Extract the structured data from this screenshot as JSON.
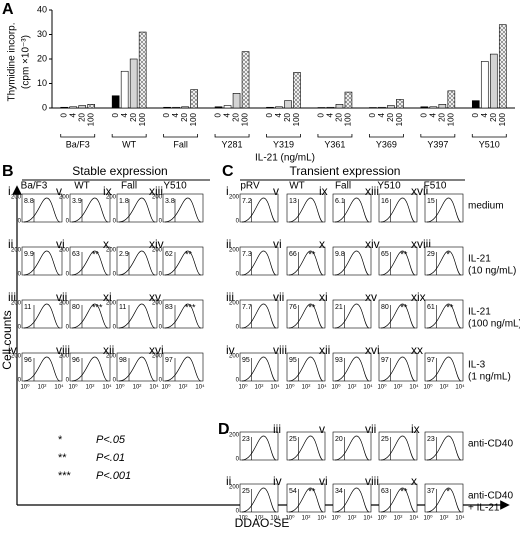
{
  "chart_data": {
    "type": "bar",
    "panel_label": "A",
    "y_label": [
      "Thymidine incorp.",
      "(cpm ×10⁻³)"
    ],
    "x_label": "IL-21 (ng/mL)",
    "categories": [
      "Ba/F3",
      "WT",
      "Fall",
      "Y281",
      "Y319",
      "Y361",
      "Y369",
      "Y397",
      "Y510"
    ],
    "series": [
      {
        "name": "0",
        "color": "#000000",
        "values": [
          0.3,
          5,
          0.3,
          0.5,
          0.3,
          0.2,
          0.2,
          0.5,
          3
        ]
      },
      {
        "name": "4",
        "color": "#ffffff",
        "values": [
          0.5,
          15,
          0.3,
          1,
          0.5,
          0.3,
          0.3,
          0.5,
          19
        ]
      },
      {
        "name": "20",
        "color": "#d4d4d4",
        "values": [
          1,
          20,
          0.5,
          6,
          3,
          1.5,
          1,
          1.5,
          22
        ]
      },
      {
        "name": "100",
        "color": "#ffffff",
        "pattern": "crosshatch",
        "values": [
          1.5,
          31,
          7.5,
          23,
          14.5,
          6.5,
          3.5,
          7,
          34
        ]
      }
    ],
    "ylim": [
      0,
      40
    ],
    "yticks": [
      0,
      10,
      20,
      30,
      40
    ]
  },
  "panel_b": {
    "label": "B",
    "title": "Stable expression",
    "columns": [
      "Ba/F3",
      "WT",
      "Fall",
      "Y510"
    ],
    "rows": [
      [
        {
          "n": "i",
          "pct": "8.8"
        },
        {
          "n": "v",
          "pct": "3.9"
        },
        {
          "n": "ix",
          "pct": "1.8"
        },
        {
          "n": "xiii",
          "pct": "3.8"
        }
      ],
      [
        {
          "n": "ii",
          "pct": "9.9"
        },
        {
          "n": "vi",
          "pct": "63",
          "sig": "**"
        },
        {
          "n": "x",
          "pct": "2.9"
        },
        {
          "n": "xiv",
          "pct": "62",
          "sig": "**"
        }
      ],
      [
        {
          "n": "iii",
          "pct": "11"
        },
        {
          "n": "vii",
          "pct": "80",
          "sig": "***"
        },
        {
          "n": "xi",
          "pct": "11"
        },
        {
          "n": "xv",
          "pct": "83",
          "sig": "***"
        }
      ],
      [
        {
          "n": "iv",
          "pct": "96"
        },
        {
          "n": "viii",
          "pct": "96"
        },
        {
          "n": "xii",
          "pct": "98"
        },
        {
          "n": "xvi",
          "pct": "97"
        }
      ]
    ]
  },
  "panel_c": {
    "label": "C",
    "title": "Transient expression",
    "columns": [
      "pRV",
      "WT",
      "Fall",
      "Y510",
      "F510"
    ],
    "row_labels": [
      [
        "medium"
      ],
      [
        "IL-21",
        "(10 ng/mL)"
      ],
      [
        "IL-21",
        "(100 ng/mL)"
      ],
      [
        "IL-3",
        "(1 ng/mL)"
      ]
    ],
    "rows": [
      [
        {
          "n": "i",
          "pct": "7.2"
        },
        {
          "n": "v",
          "pct": "13"
        },
        {
          "n": "ix",
          "pct": "6.1"
        },
        {
          "n": "xiii",
          "pct": "16"
        },
        {
          "n": "xvii",
          "pct": "15"
        }
      ],
      [
        {
          "n": "ii",
          "pct": "7.3"
        },
        {
          "n": "vi",
          "pct": "66",
          "sig": "**"
        },
        {
          "n": "x",
          "pct": "9.8"
        },
        {
          "n": "xiv",
          "pct": "65",
          "sig": "**"
        },
        {
          "n": "xviii",
          "pct": "29",
          "sig": "*"
        }
      ],
      [
        {
          "n": "iii",
          "pct": "7.7"
        },
        {
          "n": "vii",
          "pct": "76",
          "sig": "**"
        },
        {
          "n": "xi",
          "pct": "21"
        },
        {
          "n": "xv",
          "pct": "80",
          "sig": "**"
        },
        {
          "n": "xix",
          "pct": "61",
          "sig": "**"
        }
      ],
      [
        {
          "n": "iv",
          "pct": "95"
        },
        {
          "n": "viii",
          "pct": "95"
        },
        {
          "n": "xii",
          "pct": "93"
        },
        {
          "n": "xvi",
          "pct": "97"
        },
        {
          "n": "xx",
          "pct": "97"
        }
      ]
    ]
  },
  "panel_d": {
    "label": "D",
    "row_labels": [
      [
        "anti-CD40"
      ],
      [
        "anti-CD40",
        "+ IL-21"
      ]
    ],
    "rows": [
      [
        {
          "n": "i",
          "pct": "23"
        },
        {
          "n": "iii",
          "pct": "25"
        },
        {
          "n": "v",
          "pct": "20"
        },
        {
          "n": "vii",
          "pct": "25"
        },
        {
          "n": "ix",
          "pct": "23"
        }
      ],
      [
        {
          "n": "ii",
          "pct": "25"
        },
        {
          "n": "iv",
          "pct": "54",
          "sig": "**"
        },
        {
          "n": "vi",
          "pct": "34"
        },
        {
          "n": "viii",
          "pct": "63",
          "sig": "**"
        },
        {
          "n": "x",
          "pct": "37",
          "sig": "*"
        }
      ]
    ]
  },
  "histogram_axis": {
    "yticks": [
      "200",
      "0"
    ],
    "xticks": [
      "10⁰",
      "10²",
      "10⁴"
    ]
  },
  "axis_labels": {
    "y": "Cell counts",
    "x": "DDAO-SE"
  },
  "significance": [
    {
      "stars": "*",
      "p": "P<.05"
    },
    {
      "stars": "**",
      "p": "P<.01"
    },
    {
      "stars": "***",
      "p": "P<.001"
    }
  ]
}
